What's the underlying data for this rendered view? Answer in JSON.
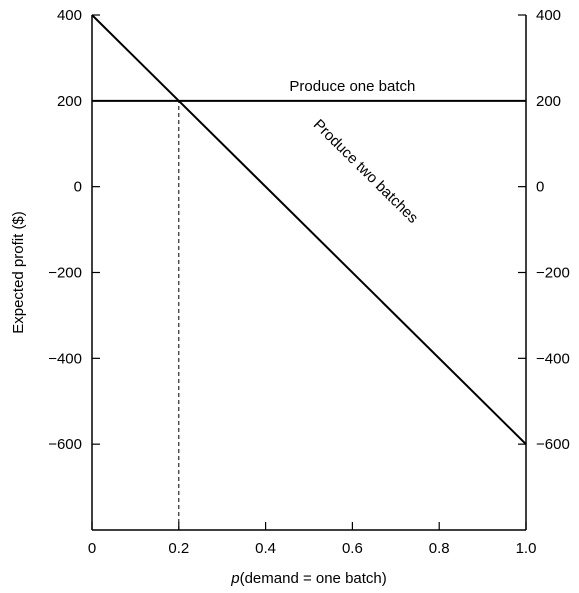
{
  "chart_data": {
    "type": "line",
    "title": "",
    "xlabel_prefix": "p",
    "xlabel_rest": "(demand = one batch)",
    "ylabel": "Expected profit ($)",
    "xlim": [
      0,
      1.0
    ],
    "ylim": [
      -800,
      400
    ],
    "x_ticks": [
      0,
      0.2,
      0.4,
      0.6,
      0.8,
      1.0
    ],
    "x_tick_labels": [
      "0",
      "0.2",
      "0.4",
      "0.6",
      "0.8",
      "1.0"
    ],
    "y_ticks": [
      400,
      200,
      0,
      -200,
      -400,
      -600
    ],
    "y_tick_labels_left": [
      "400",
      "200",
      "0",
      "−200",
      "−400",
      "−600"
    ],
    "y_tick_labels_right": [
      "400",
      "200",
      "0",
      "−200",
      "−400",
      "−600"
    ],
    "grid": false,
    "series": [
      {
        "name": "Produce one batch",
        "x": [
          0,
          1.0
        ],
        "y": [
          200,
          200
        ],
        "color": "#000000"
      },
      {
        "name": "Produce two batches",
        "x": [
          0,
          1.0
        ],
        "y": [
          400,
          -600
        ],
        "color": "#000000"
      }
    ],
    "annotations": [
      {
        "type": "vertical-dashed-line",
        "x": 0.2,
        "y_from": -800,
        "y_to": 200
      }
    ]
  }
}
